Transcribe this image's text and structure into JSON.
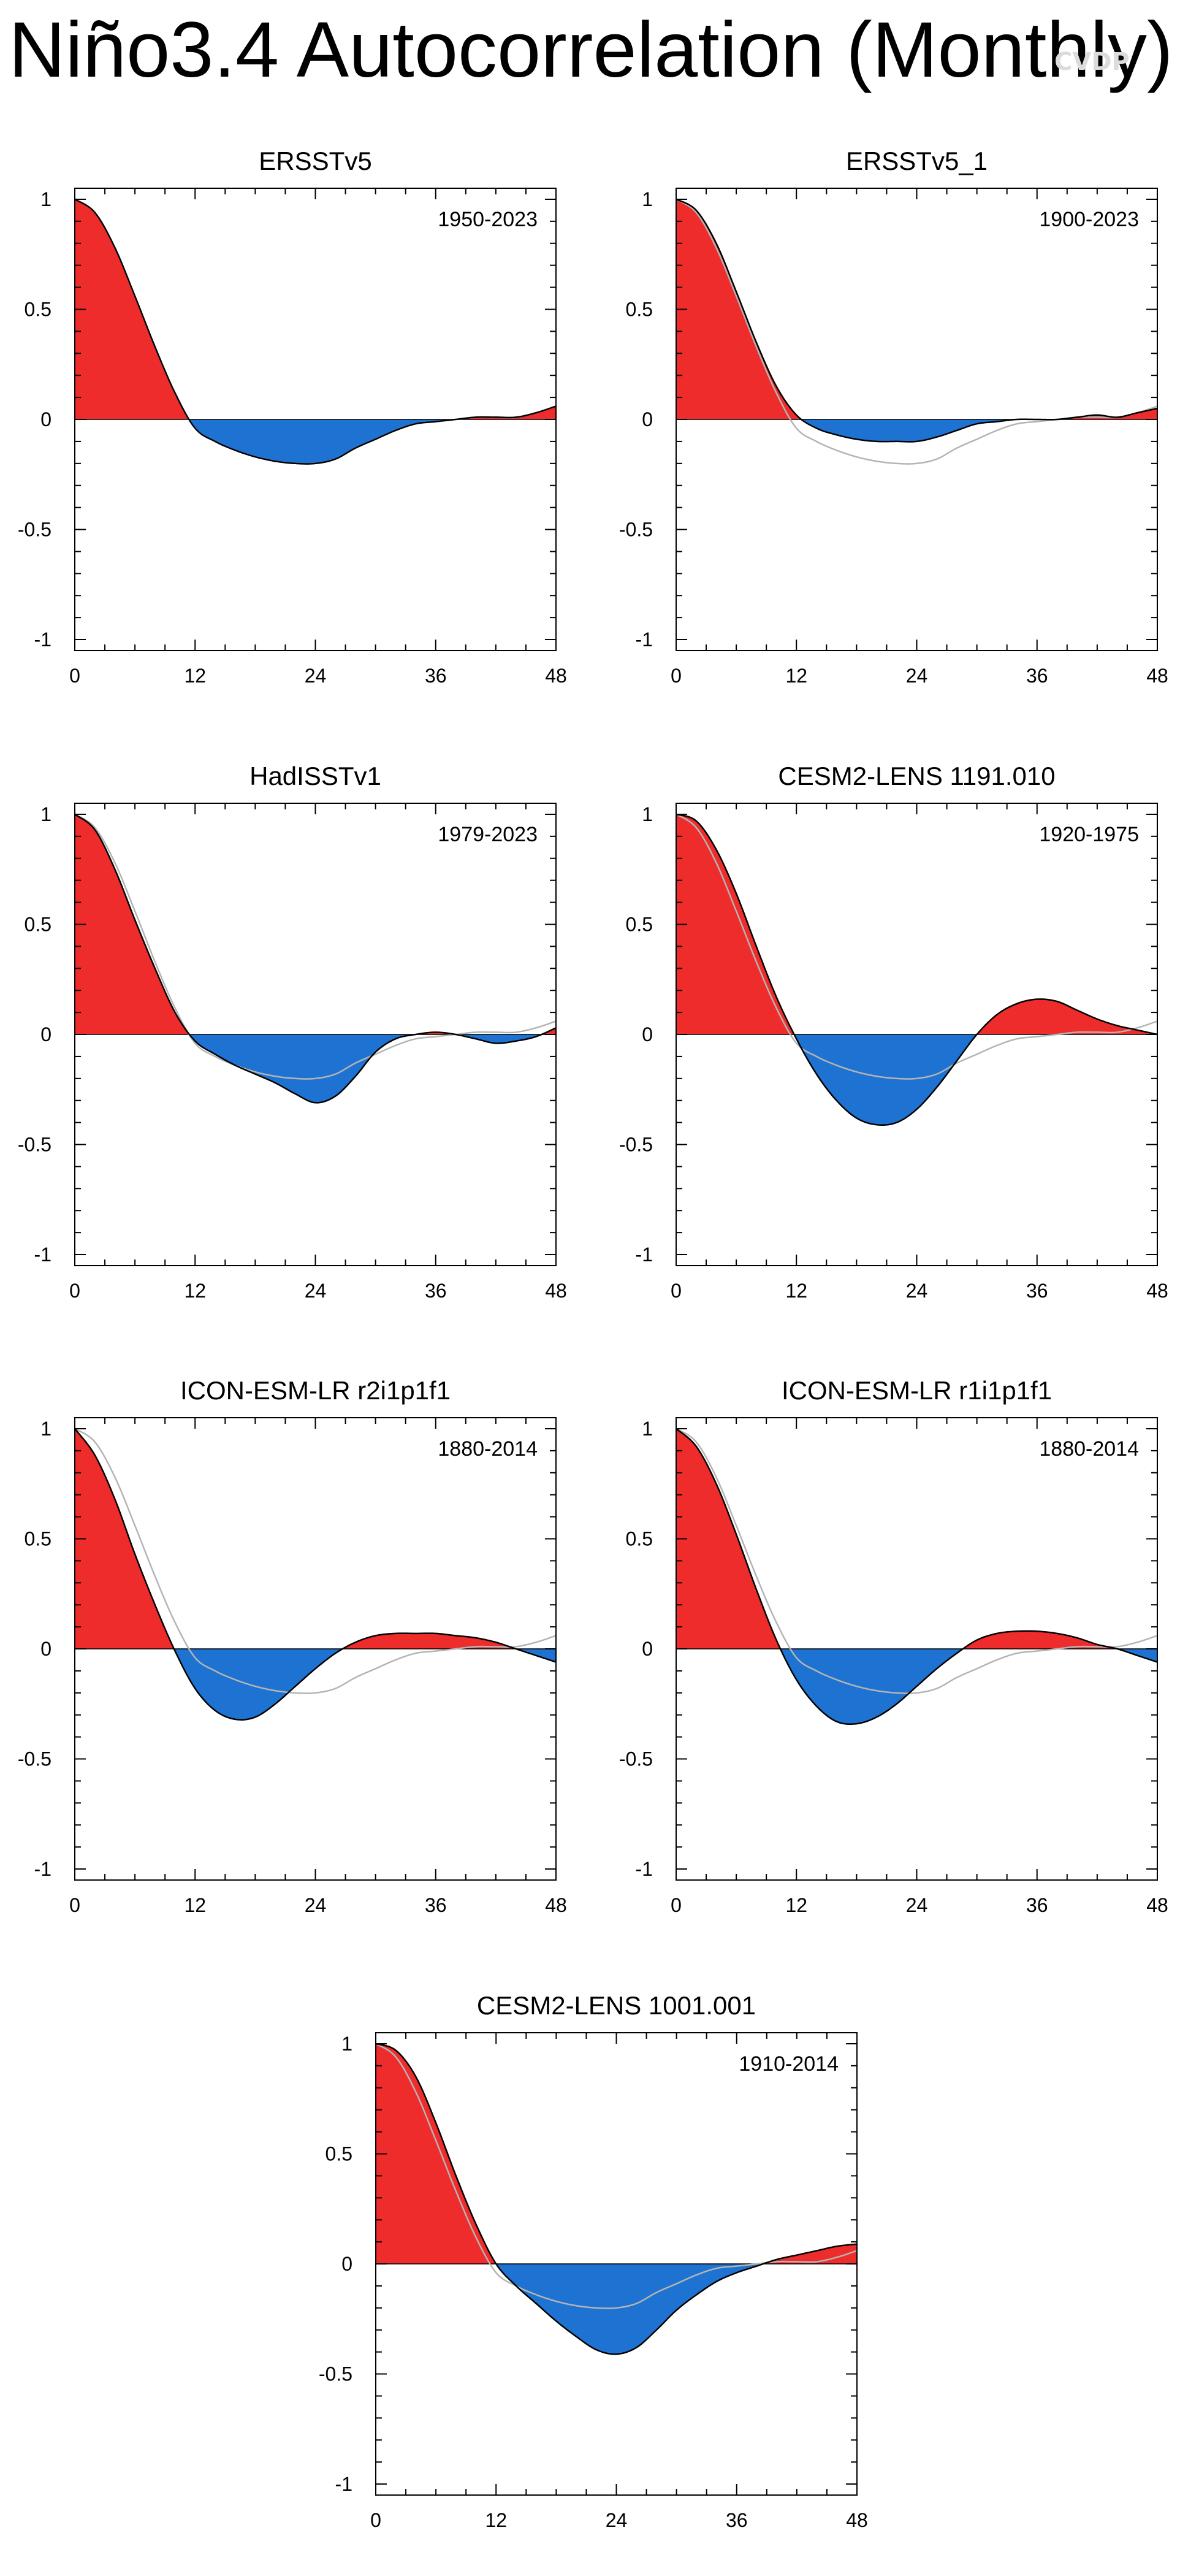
{
  "title": "Niño3.4 Autocorrelation (Monthly)",
  "watermark": "CVDP",
  "colors": {
    "positive": "#ee2c2c",
    "negative": "#1e73d2",
    "reference": "#b4b4b4",
    "line": "#000000"
  },
  "chart_data": [
    {
      "type": "area",
      "title": "ERSSTv5",
      "period": "1950-2023",
      "xlabel": "",
      "ylabel": "",
      "xlim": [
        0,
        48
      ],
      "ylim": [
        -1.05,
        1.05
      ],
      "xticks": [
        0,
        12,
        24,
        36,
        48
      ],
      "yticks": [
        1,
        0.5,
        0,
        -0.5,
        -1
      ],
      "ytick_labels": [
        "1",
        "0.5",
        "0",
        "-0.5",
        "-1"
      ],
      "x": [
        0,
        2,
        4,
        6,
        8,
        10,
        12,
        14,
        16,
        18,
        20,
        22,
        24,
        26,
        28,
        30,
        32,
        34,
        36,
        38,
        40,
        42,
        44,
        46,
        48
      ],
      "values": [
        1,
        0.94,
        0.78,
        0.56,
        0.33,
        0.12,
        -0.04,
        -0.1,
        -0.14,
        -0.17,
        -0.19,
        -0.2,
        -0.2,
        -0.18,
        -0.13,
        -0.09,
        -0.05,
        -0.02,
        -0.01,
        0,
        0.01,
        0.01,
        0.01,
        0.03,
        0.06
      ],
      "reference": [
        1,
        0.94,
        0.78,
        0.56,
        0.33,
        0.12,
        -0.04,
        -0.1,
        -0.14,
        -0.17,
        -0.19,
        -0.2,
        -0.2,
        -0.18,
        -0.13,
        -0.09,
        -0.05,
        -0.02,
        -0.01,
        0,
        0.01,
        0.01,
        0.01,
        0.03,
        0.06
      ]
    },
    {
      "type": "area",
      "title": "ERSSTv5_1",
      "period": "1900-2023",
      "xlabel": "",
      "ylabel": "",
      "xlim": [
        0,
        48
      ],
      "ylim": [
        -1.05,
        1.05
      ],
      "xticks": [
        0,
        12,
        24,
        36,
        48
      ],
      "yticks": [
        1,
        0.5,
        0,
        -0.5,
        -1
      ],
      "ytick_labels": [
        "1",
        "0.5",
        "0",
        "-0.5",
        "-1"
      ],
      "x": [
        0,
        2,
        4,
        6,
        8,
        10,
        12,
        14,
        16,
        18,
        20,
        22,
        24,
        26,
        28,
        30,
        32,
        34,
        36,
        38,
        40,
        42,
        44,
        46,
        48
      ],
      "values": [
        1,
        0.95,
        0.8,
        0.58,
        0.35,
        0.15,
        0.02,
        -0.04,
        -0.07,
        -0.09,
        -0.1,
        -0.1,
        -0.1,
        -0.08,
        -0.05,
        -0.02,
        -0.01,
        0,
        0,
        0,
        0.01,
        0.02,
        0.01,
        0.03,
        0.05
      ],
      "reference": [
        1,
        0.94,
        0.78,
        0.56,
        0.33,
        0.12,
        -0.04,
        -0.1,
        -0.14,
        -0.17,
        -0.19,
        -0.2,
        -0.2,
        -0.18,
        -0.13,
        -0.09,
        -0.05,
        -0.02,
        -0.01,
        0,
        0.01,
        0.01,
        0.01,
        0.03,
        0.06
      ]
    },
    {
      "type": "area",
      "title": "HadISSTv1",
      "period": "1979-2023",
      "xlabel": "",
      "ylabel": "",
      "xlim": [
        0,
        48
      ],
      "ylim": [
        -1.05,
        1.05
      ],
      "xticks": [
        0,
        12,
        24,
        36,
        48
      ],
      "yticks": [
        1,
        0.5,
        0,
        -0.5,
        -1
      ],
      "ytick_labels": [
        "1",
        "0.5",
        "0",
        "-0.5",
        "-1"
      ],
      "x": [
        0,
        2,
        4,
        6,
        8,
        10,
        12,
        14,
        16,
        18,
        20,
        22,
        24,
        26,
        28,
        30,
        32,
        34,
        36,
        38,
        40,
        42,
        44,
        46,
        48
      ],
      "values": [
        1,
        0.93,
        0.75,
        0.52,
        0.3,
        0.1,
        -0.03,
        -0.09,
        -0.14,
        -0.18,
        -0.22,
        -0.27,
        -0.31,
        -0.28,
        -0.19,
        -0.08,
        -0.02,
        0,
        0.01,
        0,
        -0.02,
        -0.04,
        -0.03,
        -0.01,
        0.03
      ],
      "reference": [
        1,
        0.94,
        0.78,
        0.56,
        0.33,
        0.12,
        -0.04,
        -0.1,
        -0.14,
        -0.17,
        -0.19,
        -0.2,
        -0.2,
        -0.18,
        -0.13,
        -0.09,
        -0.05,
        -0.02,
        -0.01,
        0,
        0.01,
        0.01,
        0.01,
        0.03,
        0.06
      ]
    },
    {
      "type": "area",
      "title": "CESM2-LENS 1191.010",
      "period": "1920-1975",
      "xlabel": "",
      "ylabel": "",
      "xlim": [
        0,
        48
      ],
      "ylim": [
        -1.05,
        1.05
      ],
      "xticks": [
        0,
        12,
        24,
        36,
        48
      ],
      "yticks": [
        1,
        0.5,
        0,
        -0.5,
        -1
      ],
      "ytick_labels": [
        "1",
        "0.5",
        "0",
        "-0.5",
        "-1"
      ],
      "x": [
        0,
        2,
        4,
        6,
        8,
        10,
        12,
        14,
        16,
        18,
        20,
        22,
        24,
        26,
        28,
        30,
        32,
        34,
        36,
        38,
        40,
        42,
        44,
        46,
        48
      ],
      "values": [
        1,
        0.97,
        0.84,
        0.64,
        0.4,
        0.17,
        -0.02,
        -0.18,
        -0.3,
        -0.38,
        -0.41,
        -0.4,
        -0.34,
        -0.24,
        -0.12,
        0,
        0.09,
        0.14,
        0.16,
        0.15,
        0.11,
        0.07,
        0.04,
        0.02,
        0
      ],
      "reference": [
        1,
        0.94,
        0.78,
        0.56,
        0.33,
        0.12,
        -0.04,
        -0.1,
        -0.14,
        -0.17,
        -0.19,
        -0.2,
        -0.2,
        -0.18,
        -0.13,
        -0.09,
        -0.05,
        -0.02,
        -0.01,
        0,
        0.01,
        0.01,
        0.01,
        0.03,
        0.06
      ]
    },
    {
      "type": "area",
      "title": "ICON-ESM-LR r2i1p1f1",
      "period": "1880-2014",
      "xlabel": "",
      "ylabel": "",
      "xlim": [
        0,
        48
      ],
      "ylim": [
        -1.05,
        1.05
      ],
      "xticks": [
        0,
        12,
        24,
        36,
        48
      ],
      "yticks": [
        1,
        0.5,
        0,
        -0.5,
        -1
      ],
      "ytick_labels": [
        "1",
        "0.5",
        "0",
        "-0.5",
        "-1"
      ],
      "x": [
        0,
        2,
        4,
        6,
        8,
        10,
        12,
        14,
        16,
        18,
        20,
        22,
        24,
        26,
        28,
        30,
        32,
        34,
        36,
        38,
        40,
        42,
        44,
        46,
        48
      ],
      "values": [
        1,
        0.88,
        0.68,
        0.43,
        0.2,
        -0.01,
        -0.18,
        -0.28,
        -0.32,
        -0.31,
        -0.25,
        -0.17,
        -0.09,
        -0.02,
        0.03,
        0.06,
        0.07,
        0.07,
        0.07,
        0.06,
        0.05,
        0.03,
        0,
        -0.03,
        -0.06
      ],
      "reference": [
        1,
        0.94,
        0.78,
        0.56,
        0.33,
        0.12,
        -0.04,
        -0.1,
        -0.14,
        -0.17,
        -0.19,
        -0.2,
        -0.2,
        -0.18,
        -0.13,
        -0.09,
        -0.05,
        -0.02,
        -0.01,
        0,
        0.01,
        0.01,
        0.01,
        0.03,
        0.06
      ]
    },
    {
      "type": "area",
      "title": "ICON-ESM-LR r1i1p1f1",
      "period": "1880-2014",
      "xlabel": "",
      "ylabel": "",
      "xlim": [
        0,
        48
      ],
      "ylim": [
        -1.05,
        1.05
      ],
      "xticks": [
        0,
        12,
        24,
        36,
        48
      ],
      "yticks": [
        1,
        0.5,
        0,
        -0.5,
        -1
      ],
      "ytick_labels": [
        "1",
        "0.5",
        "0",
        "-0.5",
        "-1"
      ],
      "x": [
        0,
        2,
        4,
        6,
        8,
        10,
        12,
        14,
        16,
        18,
        20,
        22,
        24,
        26,
        28,
        30,
        32,
        34,
        36,
        38,
        40,
        42,
        44,
        46,
        48
      ],
      "values": [
        1,
        0.92,
        0.75,
        0.52,
        0.27,
        0.04,
        -0.14,
        -0.26,
        -0.33,
        -0.34,
        -0.31,
        -0.25,
        -0.17,
        -0.09,
        -0.02,
        0.04,
        0.07,
        0.08,
        0.08,
        0.07,
        0.05,
        0.02,
        0,
        -0.03,
        -0.06
      ],
      "reference": [
        1,
        0.94,
        0.78,
        0.56,
        0.33,
        0.12,
        -0.04,
        -0.1,
        -0.14,
        -0.17,
        -0.19,
        -0.2,
        -0.2,
        -0.18,
        -0.13,
        -0.09,
        -0.05,
        -0.02,
        -0.01,
        0,
        0.01,
        0.01,
        0.01,
        0.03,
        0.06
      ]
    },
    {
      "type": "area",
      "title": "CESM2-LENS 1001.001",
      "period": "1910-2014",
      "xlabel": "",
      "ylabel": "",
      "xlim": [
        0,
        48
      ],
      "ylim": [
        -1.05,
        1.05
      ],
      "xticks": [
        0,
        12,
        24,
        36,
        48
      ],
      "yticks": [
        1,
        0.5,
        0,
        -0.5,
        -1
      ],
      "ytick_labels": [
        "1",
        "0.5",
        "0",
        "-0.5",
        "-1"
      ],
      "x": [
        0,
        2,
        4,
        6,
        8,
        10,
        12,
        14,
        16,
        18,
        20,
        22,
        24,
        26,
        28,
        30,
        32,
        34,
        36,
        38,
        40,
        42,
        44,
        46,
        48
      ],
      "values": [
        1,
        0.97,
        0.85,
        0.64,
        0.4,
        0.18,
        0,
        -0.1,
        -0.18,
        -0.26,
        -0.33,
        -0.39,
        -0.41,
        -0.38,
        -0.3,
        -0.21,
        -0.14,
        -0.08,
        -0.04,
        -0.01,
        0.02,
        0.04,
        0.06,
        0.08,
        0.09
      ],
      "reference": [
        1,
        0.94,
        0.78,
        0.56,
        0.33,
        0.12,
        -0.04,
        -0.1,
        -0.14,
        -0.17,
        -0.19,
        -0.2,
        -0.2,
        -0.18,
        -0.13,
        -0.09,
        -0.05,
        -0.02,
        -0.01,
        0,
        0.01,
        0.01,
        0.01,
        0.03,
        0.06
      ]
    }
  ]
}
